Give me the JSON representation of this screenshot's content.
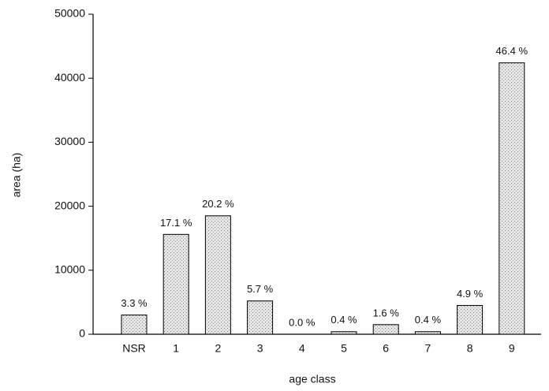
{
  "chart_data": {
    "type": "bar",
    "x_label": "age class",
    "y_label": "area (ha)",
    "categories": [
      "NSR",
      "1",
      "2",
      "3",
      "4",
      "5",
      "6",
      "7",
      "8",
      "9"
    ],
    "values": [
      3000,
      15600,
      18500,
      5200,
      0,
      400,
      1500,
      400,
      4500,
      42400
    ],
    "percent_labels": [
      "3.3 %",
      "17.1 %",
      "20.2 %",
      "5.7 %",
      "0.0 %",
      "0.4 %",
      "1.6 %",
      "0.4 %",
      "4.9 %",
      "46.4 %"
    ],
    "color": "#d4d4d4",
    "ylim": [
      0,
      50000
    ],
    "yticks": [
      0,
      10000,
      20000,
      30000,
      40000,
      50000
    ],
    "grid": false
  }
}
